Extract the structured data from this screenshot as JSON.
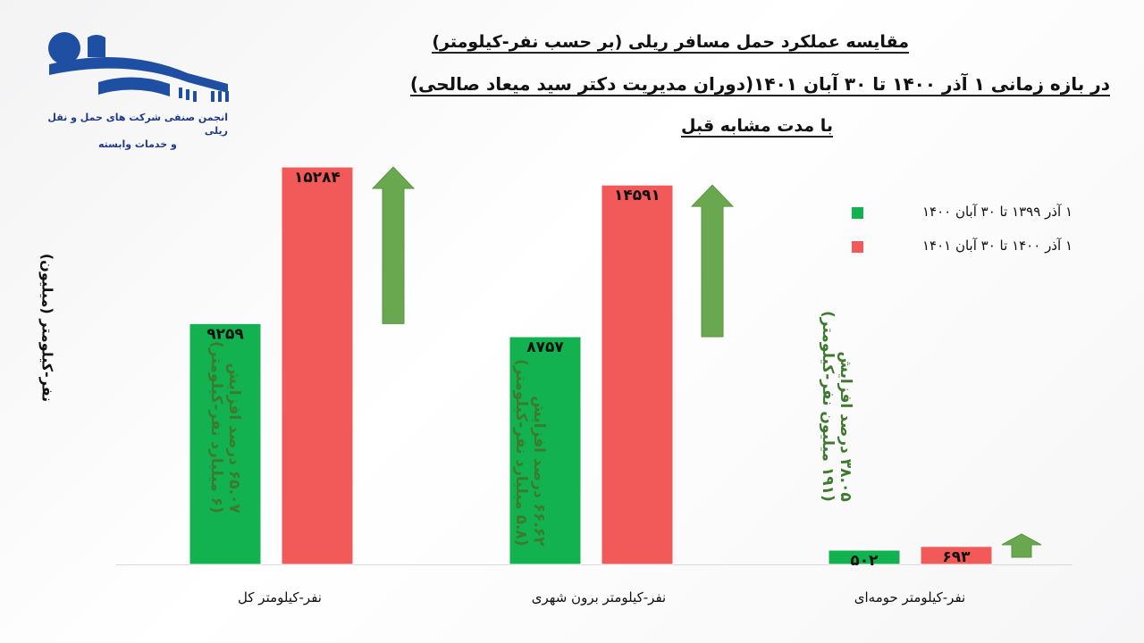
{
  "logo": {
    "line1": "انجمن صنفی شرکت های حمل و نقل ریلی",
    "line2": "و خدمات وابسته"
  },
  "title": {
    "line1": "مقایسه عملکرد حمل مسافر ریلی (بر حسب نفر-کیلومتر)",
    "line2": "در بازه زمانی ۱ آذر ۱۴۰۰ تا ۳۰ آبان ۱۴۰۱(دوران مدیریت دکتر سید میعاد صالحی)",
    "line3": "با مدت مشابه قبل"
  },
  "colors": {
    "green": "#11b24f",
    "red": "#f25a5a",
    "arrow": "#6aa84f",
    "note": "#3d7a2e"
  },
  "chart_data": {
    "type": "bar",
    "ylabel": "نفر-کیلومتر (میلیون)",
    "categories": [
      "نفر-کیلومتر کل",
      "نفر-کیلومتر برون شهری",
      "نفر-کیلومتر حومه‌ای"
    ],
    "series": [
      {
        "name": "۱ آذر ۱۳۹۹ تا ۳۰ آبان ۱۴۰۰",
        "color": "#11b24f",
        "values": [
          9259,
          8757,
          502
        ],
        "labels": [
          "۹۲۵۹",
          "۸۷۵۷",
          "۵۰۲"
        ]
      },
      {
        "name": "۱ آذر ۱۴۰۰ تا ۳۰ آبان ۱۴۰۱",
        "color": "#f25a5a",
        "values": [
          15284,
          14591,
          693
        ],
        "labels": [
          "۱۵۲۸۴",
          "۱۴۵۹۱",
          "۶۹۳"
        ]
      }
    ],
    "annotations": [
      {
        "line1": "۶۵.۰۷ درصد افزایش",
        "line2": "(۶ میلیارد نفر-کیلومتر)"
      },
      {
        "line1": "۶۶.۶۲ درصد افزایش",
        "line2": "(۵.۸ میلیارد نفر-کیلومتر)"
      },
      {
        "line1": "۳۸.۰۵ درصد افزایش",
        "line2": "(۱۹۱ میلیون نفر-کیلومتر)"
      }
    ],
    "legend_position": "top-right",
    "ylim": [
      0,
      15284
    ],
    "grid": false
  }
}
